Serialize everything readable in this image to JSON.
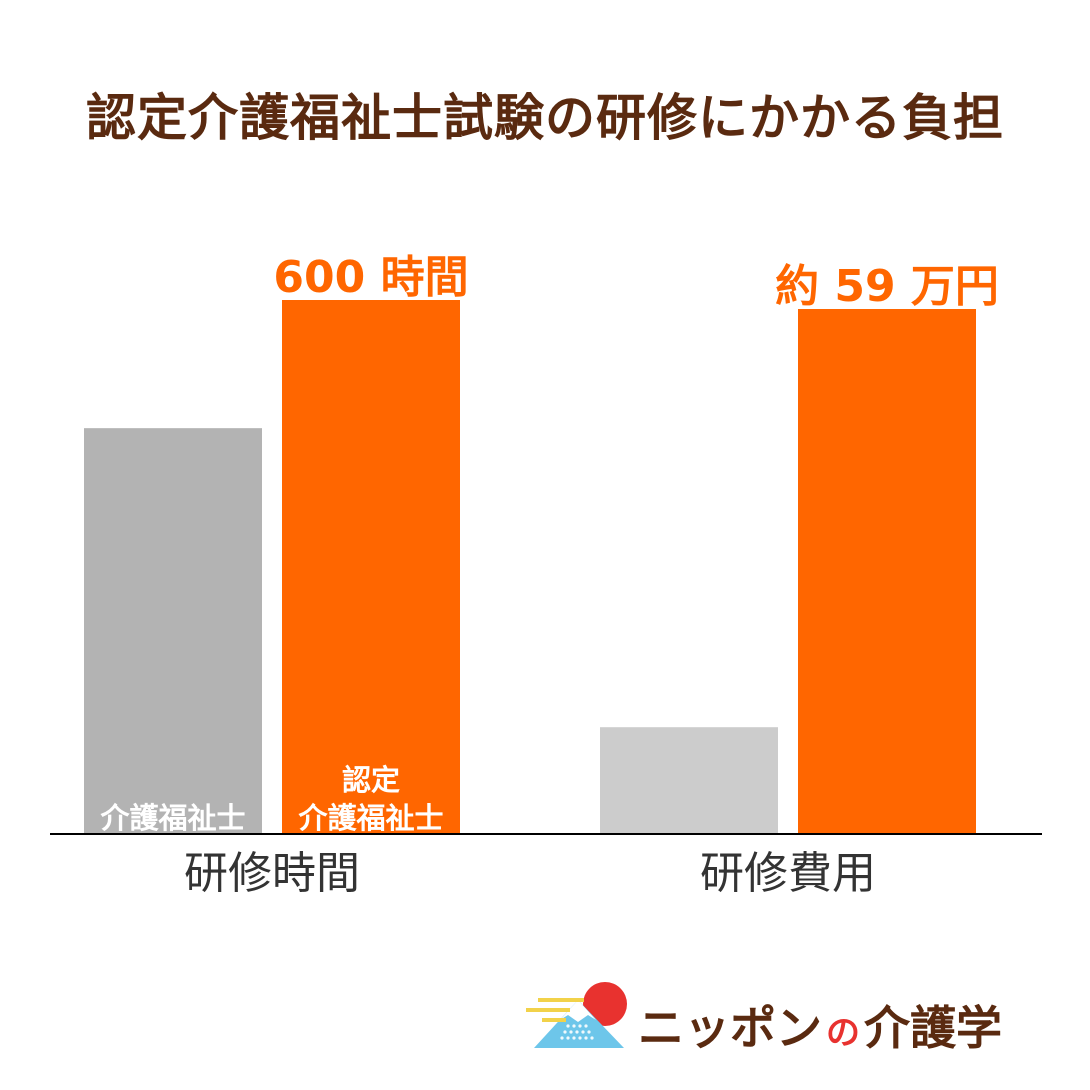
{
  "title": "認定介護福祉士試験の研修にかかる負担",
  "colors": {
    "title": "#5a2a10",
    "orange": "#ff6600",
    "gray_dark": "#b3b3b3",
    "gray_light": "#cccccc",
    "category_text": "#333333",
    "baseline": "#000000"
  },
  "chart_data": {
    "type": "bar",
    "title": "認定介護福祉士試験の研修にかかる負担",
    "xlabel": "",
    "ylabel": "",
    "categories": [
      "研修時間",
      "研修費用"
    ],
    "series": [
      {
        "name": "介護福祉士",
        "values": [
          0.76,
          0.2
        ]
      },
      {
        "name": "認定\n介護福祉士",
        "values": [
          1.0,
          1.0
        ]
      }
    ],
    "series_labels": [
      "介護福祉士",
      "認定",
      "介護福祉士"
    ],
    "value_labels": [
      "600 時間",
      "約 59 万円"
    ],
    "grid": false,
    "legend": "in-bar"
  },
  "logo": {
    "brand_part1": "ニッポン",
    "brand_part2": "の",
    "brand_part3": "介護学"
  }
}
